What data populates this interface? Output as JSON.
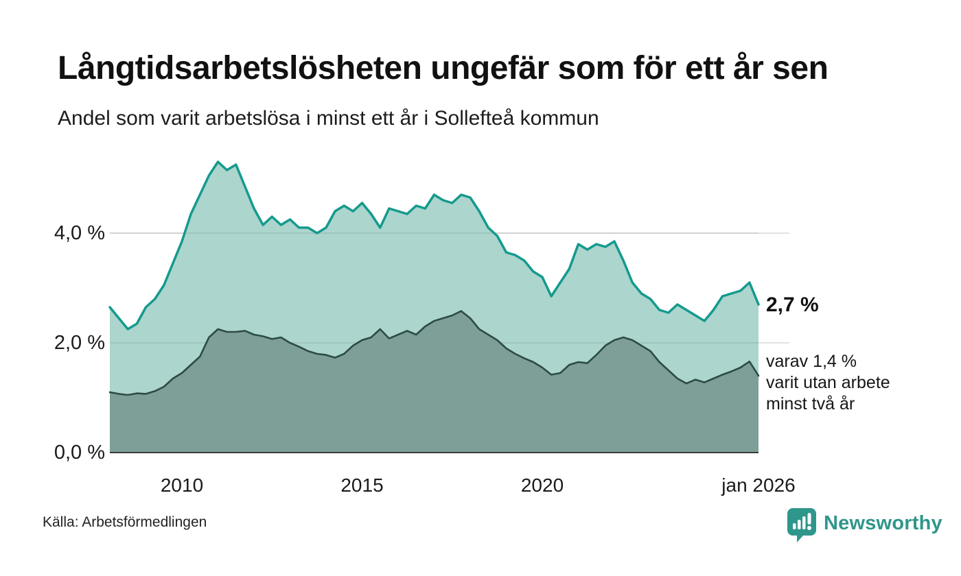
{
  "header": {
    "title": "Långtidsarbetslösheten ungefär som för ett år sen",
    "subtitle": "Andel som varit arbetslösa i minst ett år i Sollefteå kommun"
  },
  "chart_data": {
    "type": "area",
    "title": "Långtidsarbetslösheten ungefär som för ett år sen",
    "subtitle": "Andel som varit arbetslösa i minst ett år i Sollefteå kommun",
    "unit": "%",
    "xlim": [
      2008,
      2026
    ],
    "ylim": [
      0,
      5.5
    ],
    "grid": "horizontal",
    "legend": "none",
    "x": [
      2008,
      2008.25,
      2008.5,
      2008.75,
      2009,
      2009.25,
      2009.5,
      2009.75,
      2010,
      2010.25,
      2010.5,
      2010.75,
      2011,
      2011.25,
      2011.5,
      2011.75,
      2012,
      2012.25,
      2012.5,
      2012.75,
      2013,
      2013.25,
      2013.5,
      2013.75,
      2014,
      2014.25,
      2014.5,
      2014.75,
      2015,
      2015.25,
      2015.5,
      2015.75,
      2016,
      2016.25,
      2016.5,
      2016.75,
      2017,
      2017.25,
      2017.5,
      2017.75,
      2018,
      2018.25,
      2018.5,
      2018.75,
      2019,
      2019.25,
      2019.5,
      2019.75,
      2020,
      2020.25,
      2020.5,
      2020.75,
      2021,
      2021.25,
      2021.5,
      2021.75,
      2022,
      2022.25,
      2022.5,
      2022.75,
      2023,
      2023.25,
      2023.5,
      2023.75,
      2024,
      2024.25,
      2024.5,
      2024.75,
      2025,
      2025.25,
      2025.5,
      2025.75,
      2026
    ],
    "series": [
      {
        "name": "Andel som varit arbetslösa i minst ett år",
        "color": "#149a8d",
        "fill": "#abd5cd",
        "latest_value": 2.7,
        "values": [
          2.65,
          2.45,
          2.25,
          2.35,
          2.65,
          2.8,
          3.05,
          3.45,
          3.85,
          4.35,
          4.7,
          5.05,
          5.3,
          5.15,
          5.25,
          4.85,
          4.45,
          4.15,
          4.3,
          4.15,
          4.25,
          4.1,
          4.1,
          4.0,
          4.1,
          4.4,
          4.5,
          4.4,
          4.55,
          4.35,
          4.1,
          4.45,
          4.4,
          4.35,
          4.5,
          4.45,
          4.7,
          4.6,
          4.55,
          4.7,
          4.65,
          4.4,
          4.1,
          3.95,
          3.65,
          3.6,
          3.5,
          3.3,
          3.2,
          2.85,
          3.1,
          3.35,
          3.8,
          3.7,
          3.8,
          3.75,
          3.85,
          3.5,
          3.1,
          2.9,
          2.8,
          2.6,
          2.55,
          2.7,
          2.6,
          2.5,
          2.4,
          2.6,
          2.85,
          2.9,
          2.95,
          3.1,
          2.7
        ]
      },
      {
        "name": "Andel som varit utan arbete minst två år",
        "color": "#2d4b46",
        "fill": "#7e9f97",
        "latest_value": 1.4,
        "values": [
          1.1,
          1.07,
          1.05,
          1.08,
          1.07,
          1.12,
          1.2,
          1.35,
          1.45,
          1.6,
          1.75,
          2.1,
          2.25,
          2.2,
          2.2,
          2.22,
          2.15,
          2.12,
          2.07,
          2.1,
          2.0,
          1.93,
          1.85,
          1.8,
          1.78,
          1.73,
          1.8,
          1.95,
          2.05,
          2.1,
          2.25,
          2.08,
          2.15,
          2.22,
          2.15,
          2.3,
          2.4,
          2.45,
          2.5,
          2.58,
          2.45,
          2.25,
          2.15,
          2.05,
          1.9,
          1.8,
          1.72,
          1.65,
          1.55,
          1.42,
          1.45,
          1.6,
          1.65,
          1.63,
          1.78,
          1.95,
          2.05,
          2.1,
          2.05,
          1.95,
          1.85,
          1.65,
          1.5,
          1.35,
          1.26,
          1.33,
          1.28,
          1.35,
          1.42,
          1.48,
          1.55,
          1.66,
          1.4
        ]
      }
    ],
    "x_ticks": [
      {
        "value": 2010,
        "label": "2010"
      },
      {
        "value": 2015,
        "label": "2015"
      },
      {
        "value": 2020,
        "label": "2020"
      },
      {
        "value": 2026,
        "label": "jan 2026"
      }
    ],
    "y_ticks": [
      {
        "value": 0,
        "label": "0,0 %"
      },
      {
        "value": 2,
        "label": "2,0 %"
      },
      {
        "value": 4,
        "label": "4,0 %"
      }
    ]
  },
  "annotations": {
    "latest_total": "2,7 %",
    "sub_line1": "varav 1,4 %",
    "sub_line2": "varit utan arbete",
    "sub_line3": "minst två år"
  },
  "footer": {
    "source": "Källa: Arbetsförmedlingen",
    "brand": "Newsworthy"
  },
  "colors": {
    "accent_teal": "#149a8d",
    "light_fill": "#abd5cd",
    "dark_line": "#2d4b46",
    "dark_fill": "#7e9f97",
    "gridline": "#d8d8d8",
    "baseline": "#3c3c3c",
    "brand_teal": "#2f968b"
  }
}
